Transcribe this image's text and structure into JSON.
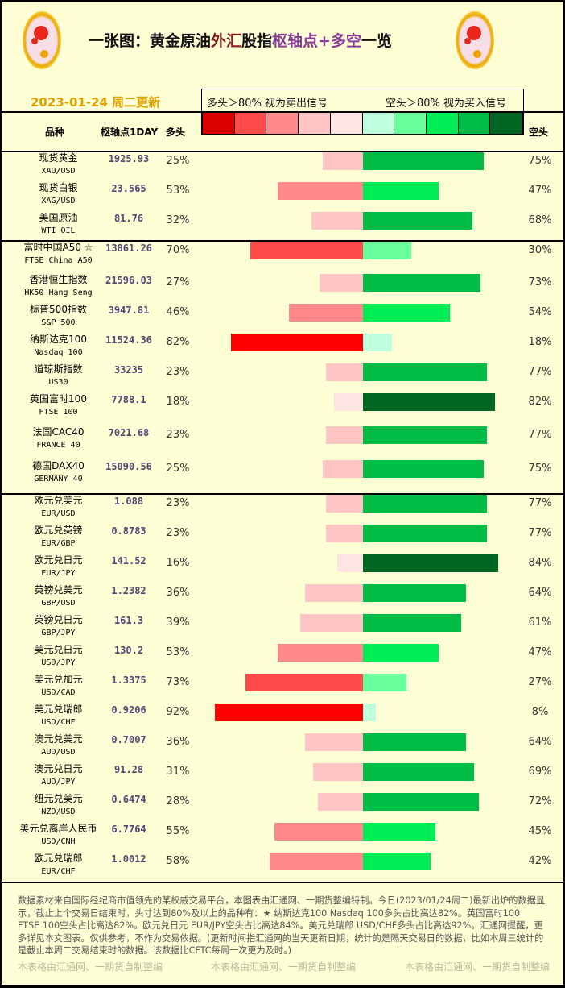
{
  "header": {
    "title_parts": [
      "一张图：黄金原油",
      "外汇",
      "股指",
      "枢轴点+多空",
      "一览"
    ],
    "date": "2023-01-24 周二更新",
    "legend_left": "多头＞80% 视为卖出信号",
    "legend_right": "空头＞80% 视为买入信号",
    "col_name": "品种",
    "col_pivot": "枢轴点1DAY",
    "col_long": "多头",
    "col_short": "空头"
  },
  "colors": {
    "long": [
      "#ffe4e4",
      "#ffc4c4",
      "#ff8888",
      "#ff4a4a",
      "#ff0000"
    ],
    "short": [
      "#bfffdd",
      "#66ff99",
      "#00ee55",
      "#00bb44",
      "#006622"
    ],
    "swatches": [
      "#dd0000",
      "#ff4a4a",
      "#ff8888",
      "#ffc4c4",
      "#ffe4e4",
      "#bfffdd",
      "#66ff99",
      "#00ee55",
      "#00bb44",
      "#006622"
    ]
  },
  "groups": [
    [
      {
        "name": "现货黄金",
        "code": "XAU/USD",
        "pivot": "1925.93",
        "long": 25,
        "short": 75
      },
      {
        "name": "现货白银",
        "code": "XAG/USD",
        "pivot": "23.565",
        "long": 53,
        "short": 47
      },
      {
        "name": "美国原油",
        "code": "WTI OIL",
        "pivot": "81.76",
        "long": 32,
        "short": 68
      }
    ],
    [
      {
        "name": "富时中国A50 ☆",
        "code": "FTSE China A50",
        "pivot": "13861.26",
        "long": 70,
        "short": 30
      },
      {
        "name": "香港恒生指数",
        "code": "HK50 Hang Seng",
        "pivot": "21596.03",
        "long": 27,
        "short": 73
      },
      {
        "name": "标普500指数",
        "code": "S&P 500",
        "pivot": "3947.81",
        "long": 46,
        "short": 54
      },
      {
        "name": "纳斯达克100",
        "code": "Nasdaq 100",
        "pivot": "11524.36",
        "long": 82,
        "short": 18
      },
      {
        "name": "道琼斯指数",
        "code": "US30",
        "pivot": "33235",
        "long": 23,
        "short": 77
      },
      {
        "name": "英国富时100",
        "code": "FTSE 100",
        "pivot": "7788.1",
        "long": 18,
        "short": 82
      },
      {
        "name": "法国CAC40",
        "code": "FRANCE 40",
        "pivot": "7021.68",
        "long": 23,
        "short": 77
      },
      {
        "name": "德国DAX40",
        "code": "GERMANY 40",
        "pivot": "15090.56",
        "long": 25,
        "short": 75
      }
    ],
    [
      {
        "name": "欧元兑美元",
        "code": "EUR/USD",
        "pivot": "1.088",
        "long": 23,
        "short": 77
      },
      {
        "name": "欧元兑英镑",
        "code": "EUR/GBP",
        "pivot": "0.8783",
        "long": 23,
        "short": 77
      },
      {
        "name": "欧元兑日元",
        "code": "EUR/JPY",
        "pivot": "141.52",
        "long": 16,
        "short": 84
      },
      {
        "name": "英镑兑美元",
        "code": "GBP/USD",
        "pivot": "1.2382",
        "long": 36,
        "short": 64
      },
      {
        "name": "英镑兑日元",
        "code": "GBP/JPY",
        "pivot": "161.3",
        "long": 39,
        "short": 61
      },
      {
        "name": "美元兑日元",
        "code": "USD/JPY",
        "pivot": "130.2",
        "long": 53,
        "short": 47
      },
      {
        "name": "美元兑加元",
        "code": "USD/CAD",
        "pivot": "1.3375",
        "long": 73,
        "short": 27
      },
      {
        "name": "美元兑瑞郎",
        "code": "USD/CHF",
        "pivot": "0.9206",
        "long": 92,
        "short": 8
      },
      {
        "name": "澳元兑美元",
        "code": "AUD/USD",
        "pivot": "0.7007",
        "long": 36,
        "short": 64
      },
      {
        "name": "澳元兑日元",
        "code": "AUD/JPY",
        "pivot": "91.28",
        "long": 31,
        "short": 69
      },
      {
        "name": "纽元兑美元",
        "code": "NZD/USD",
        "pivot": "0.6474",
        "long": 28,
        "short": 72
      },
      {
        "name": "美元兑离岸人民币",
        "code": "USD/CNH",
        "pivot": "6.7764",
        "long": 55,
        "short": 45
      },
      {
        "name": "欧元兑瑞郎",
        "code": "EUR/CHF",
        "pivot": "1.0012",
        "long": 58,
        "short": 42
      }
    ]
  ],
  "footer": {
    "text": "数据素材来自国际经纪商市值领先的某权威交易平台，本图表由汇通网、一期货整编特制。今日(2023/01/24周二)最新出炉的数据显示，截止上个交易日结束时，头寸达到80%及以上的品种有：★ 纳斯达克100 Nasdaq 100多头占比高达82%。英国富时100　　FTSE 100空头占比高达82%。欧元兑日元 EUR/JPY空头占比高达84%。美元兑瑞郎 USD/CHF多头占比高达92%。汇通网提醒，更多详见本文图表。仅供参考，不作为交易依据。(更新时间指汇通网的当天更新日期，统计的是隔天交易日的数据，比如本周三统计的是截止本周二交易结束时的数据。该数据比CFTC每周一次更为及时。)",
    "watermark": "本表格由汇通网、一期货自制整编"
  }
}
